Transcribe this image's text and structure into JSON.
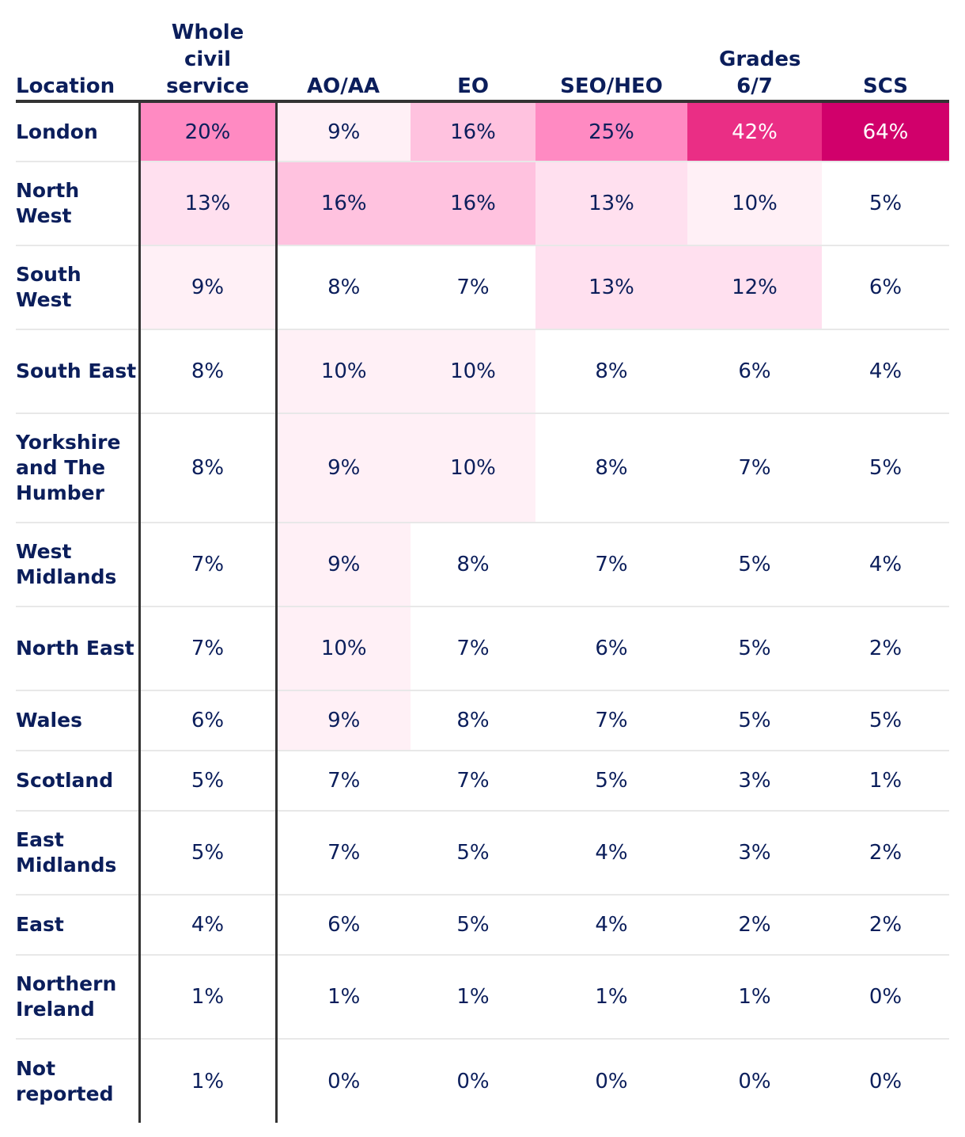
{
  "chart_data": {
    "type": "heatmap",
    "row_header": "Location",
    "columns": [
      "Whole civil service",
      "AO/AA",
      "EO",
      "SEO/HEO",
      "Grades 6/7",
      "SCS"
    ],
    "rows": [
      {
        "name": "London",
        "values": [
          20,
          9,
          16,
          25,
          42,
          64
        ]
      },
      {
        "name": "North West",
        "values": [
          13,
          16,
          16,
          13,
          10,
          5
        ]
      },
      {
        "name": "South West",
        "values": [
          9,
          8,
          7,
          13,
          12,
          6
        ]
      },
      {
        "name": "South East",
        "values": [
          8,
          10,
          10,
          8,
          6,
          4
        ]
      },
      {
        "name": "Yorkshire and The Humber",
        "values": [
          8,
          9,
          10,
          8,
          7,
          5
        ]
      },
      {
        "name": "West Midlands",
        "values": [
          7,
          9,
          8,
          7,
          5,
          4
        ]
      },
      {
        "name": "North East",
        "values": [
          7,
          10,
          7,
          6,
          5,
          2
        ]
      },
      {
        "name": "Wales",
        "values": [
          6,
          9,
          8,
          7,
          5,
          5
        ]
      },
      {
        "name": "Scotland",
        "values": [
          5,
          7,
          7,
          5,
          3,
          1
        ]
      },
      {
        "name": "East Midlands",
        "values": [
          5,
          7,
          5,
          4,
          3,
          2
        ]
      },
      {
        "name": "East",
        "values": [
          4,
          6,
          5,
          4,
          2,
          2
        ]
      },
      {
        "name": "Northern Ireland",
        "values": [
          1,
          1,
          1,
          1,
          1,
          0
        ]
      },
      {
        "name": "Not reported",
        "values": [
          1,
          0,
          0,
          0,
          0,
          0
        ]
      }
    ],
    "value_suffix": "%",
    "colors": {
      "text": "#0b1e5b",
      "scale": [
        "#ffffff",
        "#fff0f6",
        "#ffe0ef",
        "#ffc2df",
        "#ff8ac2",
        "#ea2e85",
        "#d1006b"
      ]
    }
  }
}
